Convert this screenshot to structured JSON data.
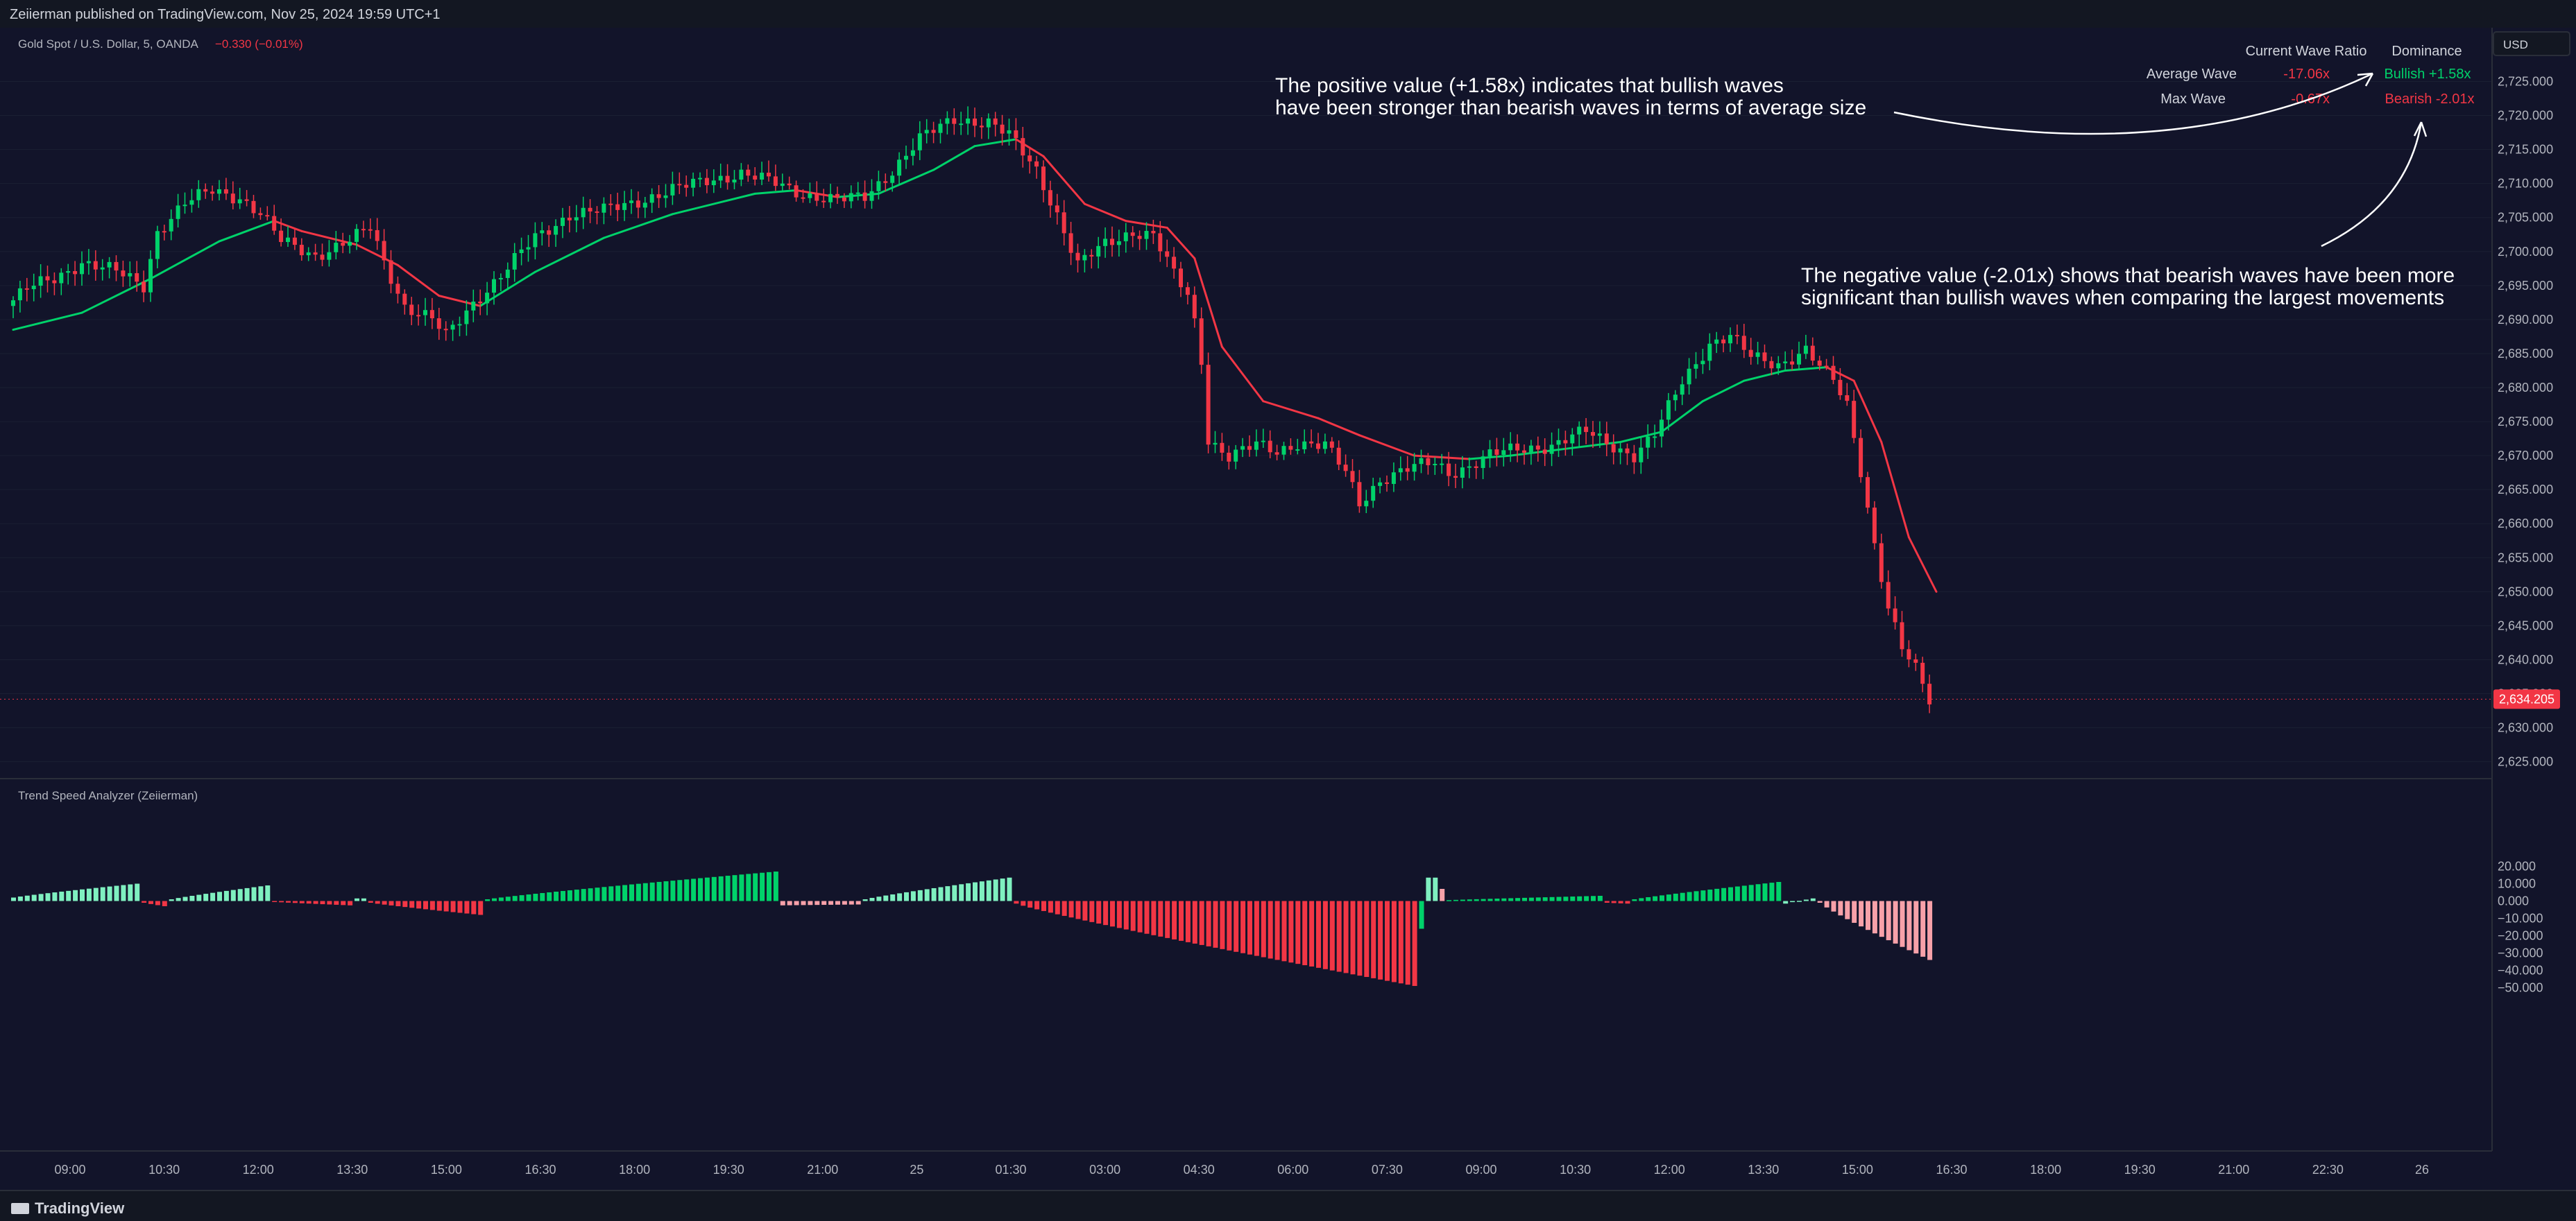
{
  "header": {
    "published": "Zeiierman published on TradingView.com, Nov 25, 2024 19:59 UTC+1"
  },
  "symbol": {
    "name": "Gold Spot / U.S. Dollar, 5, OANDA",
    "change": "−0.330 (−0.01%)"
  },
  "currency": "USD",
  "price_axis": {
    "ticks": [
      "2,725.000",
      "2,720.000",
      "2,715.000",
      "2,710.000",
      "2,705.000",
      "2,700.000",
      "2,695.000",
      "2,690.000",
      "2,685.000",
      "2,680.000",
      "2,675.000",
      "2,670.000",
      "2,665.000",
      "2,660.000",
      "2,655.000",
      "2,650.000",
      "2,645.000",
      "2,640.000",
      "2,635.000",
      "2,630.000",
      "2,625.000"
    ],
    "last_price": "2,634.205",
    "last_value": 2634.205
  },
  "osc_axis": {
    "ticks": [
      "20.000",
      "10.000",
      "0.000",
      "−10.000",
      "−20.000",
      "−30.000",
      "−40.000",
      "−50.000"
    ]
  },
  "time_axis": {
    "ticks": [
      "09:00",
      "10:30",
      "12:00",
      "13:30",
      "15:00",
      "16:30",
      "18:00",
      "19:30",
      "21:00",
      "25",
      "01:30",
      "03:00",
      "04:30",
      "06:00",
      "07:30",
      "09:00",
      "10:30",
      "12:00",
      "13:30",
      "15:00",
      "16:30",
      "18:00",
      "19:30",
      "21:00",
      "22:30",
      "26"
    ]
  },
  "table": {
    "header_ratio": "Current Wave Ratio",
    "header_dominance": "Dominance",
    "rows": [
      {
        "label": "Average Wave",
        "value": "-17.06x",
        "dominance": "Bullish +1.58x"
      },
      {
        "label": "Max Wave",
        "value": "-0.67x",
        "dominance": "Bearish -2.01x"
      }
    ]
  },
  "annotations": {
    "positive": [
      "The positive value (+1.58x) indicates that bullish waves",
      "have been stronger than bearish waves in terms of average size"
    ],
    "negative": [
      "The negative value (-2.01x) shows that bearish waves have been more",
      "significant than bullish waves when comparing the largest movements"
    ]
  },
  "indicator": {
    "name": "Trend Speed Analyzer (Zeiierman)"
  },
  "footer": {
    "brand": "TradingView"
  },
  "colors": {
    "background": "#12142a",
    "bull": "#00d26a",
    "bull_light": "#7ff0c0",
    "bear": "#f23645",
    "bear_light": "#f7a1a9",
    "text": "#d1d4dc"
  },
  "chart_data": [
    {
      "type": "candlestick",
      "title": "Gold Spot / U.S. Dollar, 5, OANDA",
      "ylim": [
        2622,
        2727
      ],
      "path_points": [
        [
          0,
          2692.0
        ],
        [
          3,
          2694.5
        ],
        [
          7,
          2696.0
        ],
        [
          11,
          2698.5
        ],
        [
          16,
          2697.0
        ],
        [
          20,
          2695.0
        ],
        [
          22,
          2703.0
        ],
        [
          26,
          2707.0
        ],
        [
          30,
          2709.0
        ],
        [
          34,
          2708.0
        ],
        [
          37,
          2705.5
        ],
        [
          40,
          2701.5
        ],
        [
          45,
          2699.5
        ],
        [
          50,
          2701.5
        ],
        [
          53,
          2703.5
        ],
        [
          55,
          2698.5
        ],
        [
          58,
          2692.0
        ],
        [
          62,
          2690.0
        ],
        [
          64,
          2687.5
        ],
        [
          66,
          2690.0
        ],
        [
          68,
          2692.5
        ],
        [
          72,
          2696.5
        ],
        [
          77,
          2702.0
        ],
        [
          82,
          2705.5
        ],
        [
          87,
          2706.0
        ],
        [
          92,
          2707.5
        ],
        [
          97,
          2709.0
        ],
        [
          102,
          2710.5
        ],
        [
          107,
          2711.5
        ],
        [
          112,
          2710.0
        ],
        [
          116,
          2708.5
        ],
        [
          121,
          2707.5
        ],
        [
          125,
          2708.0
        ],
        [
          129,
          2712.0
        ],
        [
          133,
          2716.5
        ],
        [
          138,
          2719.5
        ],
        [
          143,
          2719.0
        ],
        [
          146,
          2717.0
        ],
        [
          150,
          2712.0
        ],
        [
          153,
          2705.5
        ],
        [
          156,
          2698.0
        ],
        [
          160,
          2701.0
        ],
        [
          164,
          2703.0
        ],
        [
          167,
          2702.5
        ],
        [
          170,
          2696.5
        ],
        [
          172,
          2693.5
        ],
        [
          173,
          2689.5
        ],
        [
          174,
          2684.0
        ],
        [
          175,
          2672.5
        ],
        [
          178,
          2670.0
        ],
        [
          182,
          2671.5
        ],
        [
          185,
          2670.5
        ],
        [
          188,
          2672.0
        ],
        [
          192,
          2671.5
        ],
        [
          195,
          2667.5
        ],
        [
          197,
          2663.0
        ],
        [
          200,
          2666.5
        ],
        [
          204,
          2668.0
        ],
        [
          208,
          2669.0
        ],
        [
          210,
          2667.5
        ],
        [
          213,
          2668.5
        ],
        [
          216,
          2670.0
        ],
        [
          220,
          2671.0
        ],
        [
          225,
          2671.5
        ],
        [
          230,
          2673.5
        ],
        [
          234,
          2671.5
        ],
        [
          237,
          2670.0
        ],
        [
          240,
          2673.0
        ],
        [
          244,
          2681.0
        ],
        [
          248,
          2686.5
        ],
        [
          251,
          2687.5
        ],
        [
          254,
          2684.5
        ],
        [
          258,
          2683.5
        ],
        [
          262,
          2685.5
        ],
        [
          264,
          2683.0
        ],
        [
          266,
          2681.0
        ],
        [
          268,
          2677.5
        ],
        [
          270,
          2668.0
        ],
        [
          272,
          2657.0
        ],
        [
          274,
          2647.5
        ],
        [
          276,
          2641.5
        ],
        [
          278,
          2638.5
        ],
        [
          280,
          2634.2
        ]
      ],
      "bars": 280,
      "ema_points": [
        [
          0,
          2688.5
        ],
        [
          10,
          2691.0
        ],
        [
          20,
          2696.0
        ],
        [
          30,
          2701.5
        ],
        [
          38,
          2704.5
        ],
        [
          42,
          2703.0
        ],
        [
          50,
          2701.0
        ],
        [
          56,
          2698.0
        ],
        [
          62,
          2693.5
        ],
        [
          68,
          2692.0
        ],
        [
          76,
          2697.0
        ],
        [
          86,
          2702.0
        ],
        [
          96,
          2705.5
        ],
        [
          108,
          2708.5
        ],
        [
          114,
          2709.0
        ],
        [
          120,
          2708.0
        ],
        [
          126,
          2708.5
        ],
        [
          134,
          2712.0
        ],
        [
          140,
          2715.5
        ],
        [
          146,
          2716.5
        ],
        [
          150,
          2714.0
        ],
        [
          156,
          2707.0
        ],
        [
          162,
          2704.5
        ],
        [
          168,
          2703.5
        ],
        [
          172,
          2699.0
        ],
        [
          176,
          2686.0
        ],
        [
          182,
          2678.0
        ],
        [
          190,
          2675.5
        ],
        [
          196,
          2673.0
        ],
        [
          204,
          2670.0
        ],
        [
          212,
          2669.5
        ],
        [
          218,
          2670.0
        ],
        [
          226,
          2671.0
        ],
        [
          234,
          2672.0
        ],
        [
          240,
          2673.5
        ],
        [
          246,
          2678.0
        ],
        [
          252,
          2681.0
        ],
        [
          258,
          2682.5
        ],
        [
          264,
          2683.0
        ],
        [
          268,
          2681.0
        ],
        [
          272,
          2672.0
        ],
        [
          276,
          2658.0
        ],
        [
          280,
          2650.0
        ]
      ]
    },
    {
      "type": "bar",
      "title": "Trend Speed Analyzer (Zeiierman)",
      "ylim": [
        -55,
        24
      ],
      "bars": 280,
      "segments": [
        {
          "from": 0,
          "to": 19,
          "start": 2.0,
          "end": 10.0,
          "shade": "bull_light"
        },
        {
          "from": 19,
          "to": 23,
          "start": -1.0,
          "end": -3.0,
          "shade": "bear"
        },
        {
          "from": 23,
          "to": 38,
          "start": 1.0,
          "end": 9.0,
          "shade": "bull_light"
        },
        {
          "from": 38,
          "to": 50,
          "start": -0.5,
          "end": -2.5,
          "shade": "bear"
        },
        {
          "from": 50,
          "to": 52,
          "start": 1.5,
          "end": 1.5,
          "shade": "bull_light"
        },
        {
          "from": 52,
          "to": 69,
          "start": -1.0,
          "end": -8.0,
          "shade": "bear"
        },
        {
          "from": 69,
          "to": 112,
          "start": 1.0,
          "end": 17.0,
          "shade": "bull"
        },
        {
          "from": 112,
          "to": 124,
          "start": -2.5,
          "end": -2.0,
          "shade": "bear_light"
        },
        {
          "from": 124,
          "to": 146,
          "start": 1.0,
          "end": 13.5,
          "shade": "bull_light"
        },
        {
          "from": 146,
          "to": 205,
          "start": -1.5,
          "end": -49.0,
          "shade": "bear"
        },
        {
          "from": 205,
          "to": 206,
          "start": -16.0,
          "end": -16.0,
          "shade": "bull"
        },
        {
          "from": 206,
          "to": 208,
          "start": 13.5,
          "end": 13.5,
          "shade": "bull_light"
        },
        {
          "from": 208,
          "to": 209,
          "start": 7.0,
          "end": 7.0,
          "shade": "bear_light"
        },
        {
          "from": 209,
          "to": 232,
          "start": 0.5,
          "end": 3.0,
          "shade": "bull"
        },
        {
          "from": 232,
          "to": 236,
          "start": -1.0,
          "end": -1.5,
          "shade": "bear"
        },
        {
          "from": 236,
          "to": 258,
          "start": 1.0,
          "end": 11.0,
          "shade": "bull"
        },
        {
          "from": 258,
          "to": 263,
          "start": -1.5,
          "end": 1.5,
          "shade": "bull_light"
        },
        {
          "from": 263,
          "to": 280,
          "start": -1.0,
          "end": -34.0,
          "shade": "bear_light"
        }
      ]
    }
  ]
}
